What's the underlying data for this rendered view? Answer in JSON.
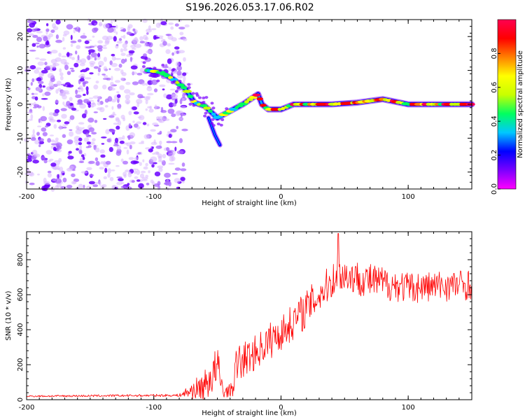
{
  "title": "S196.2026.053.17.06.R02",
  "chart_data": [
    {
      "type": "heatmap",
      "xlabel": "Height of straight line (km)",
      "ylabel": "Frequency (Hz)",
      "xlim": [
        -200,
        150
      ],
      "ylim": [
        -25,
        25
      ],
      "x_ticks": [
        -200,
        -100,
        0,
        100
      ],
      "y_ticks": [
        -20,
        -10,
        0,
        10,
        20
      ],
      "colorbar": {
        "label": "Normalized spectral amplitude",
        "range": [
          0,
          1
        ],
        "ticks": [
          0.0,
          0.2,
          0.4,
          0.6,
          0.8
        ],
        "tick_labels": [
          "0.0",
          "0.2",
          "0.4",
          "0.6",
          "0.8"
        ],
        "colormap": [
          "#ff00ff",
          "#7a00ff",
          "#0000ff",
          "#00c8ff",
          "#00ff60",
          "#c8ff00",
          "#ffff00",
          "#ff8000",
          "#ff0000",
          "#ff0050"
        ]
      },
      "noise_region_x": [
        -200,
        -75
      ],
      "ridge": [
        {
          "x": -105,
          "f": 10
        },
        {
          "x": -95,
          "f": 9.5
        },
        {
          "x": -85,
          "f": 7.5
        },
        {
          "x": -75,
          "f": 4.5
        },
        {
          "x": -68,
          "f": 0.5
        },
        {
          "x": -60,
          "f": -0.5
        },
        {
          "x": -50,
          "f": -4
        },
        {
          "x": -40,
          "f": -2
        },
        {
          "x": -30,
          "f": 0
        },
        {
          "x": -18,
          "f": 3
        },
        {
          "x": -15,
          "f": 0
        },
        {
          "x": -10,
          "f": -1.5
        },
        {
          "x": 0,
          "f": -1.5
        },
        {
          "x": 10,
          "f": 0
        },
        {
          "x": 40,
          "f": 0
        },
        {
          "x": 60,
          "f": 0.5
        },
        {
          "x": 80,
          "f": 1.5
        },
        {
          "x": 100,
          "f": 0
        },
        {
          "x": 120,
          "f": 0
        },
        {
          "x": 150,
          "f": 0
        }
      ],
      "side_branch": [
        {
          "x": -57,
          "f": -4
        },
        {
          "x": -52,
          "f": -9
        },
        {
          "x": -48,
          "f": -12
        }
      ]
    },
    {
      "type": "line",
      "xlabel": "Height of straight line (km)",
      "ylabel": "SNR (10 * v/v)",
      "xlim": [
        -200,
        150
      ],
      "ylim": [
        0,
        960
      ],
      "x_ticks": [
        -200,
        -100,
        0,
        100
      ],
      "y_ticks": [
        0,
        200,
        400,
        600,
        800
      ],
      "color": "#ff0000",
      "envelope": [
        {
          "x": -200,
          "base": 20,
          "amp": 10
        },
        {
          "x": -80,
          "base": 25,
          "amp": 15
        },
        {
          "x": -60,
          "base": 80,
          "amp": 180
        },
        {
          "x": -50,
          "base": 180,
          "amp": 280
        },
        {
          "x": -45,
          "base": 40,
          "amp": 60
        },
        {
          "x": -38,
          "base": 60,
          "amp": 80
        },
        {
          "x": -35,
          "base": 200,
          "amp": 220
        },
        {
          "x": -20,
          "base": 270,
          "amp": 200
        },
        {
          "x": -10,
          "base": 330,
          "amp": 220
        },
        {
          "x": 0,
          "base": 380,
          "amp": 200
        },
        {
          "x": 20,
          "base": 520,
          "amp": 220
        },
        {
          "x": 45,
          "base": 720,
          "amp": 200
        },
        {
          "x": 70,
          "base": 680,
          "amp": 200
        },
        {
          "x": 100,
          "base": 640,
          "amp": 180
        },
        {
          "x": 150,
          "base": 660,
          "amp": 180
        }
      ],
      "peak": {
        "x": 45,
        "y": 950
      }
    }
  ]
}
